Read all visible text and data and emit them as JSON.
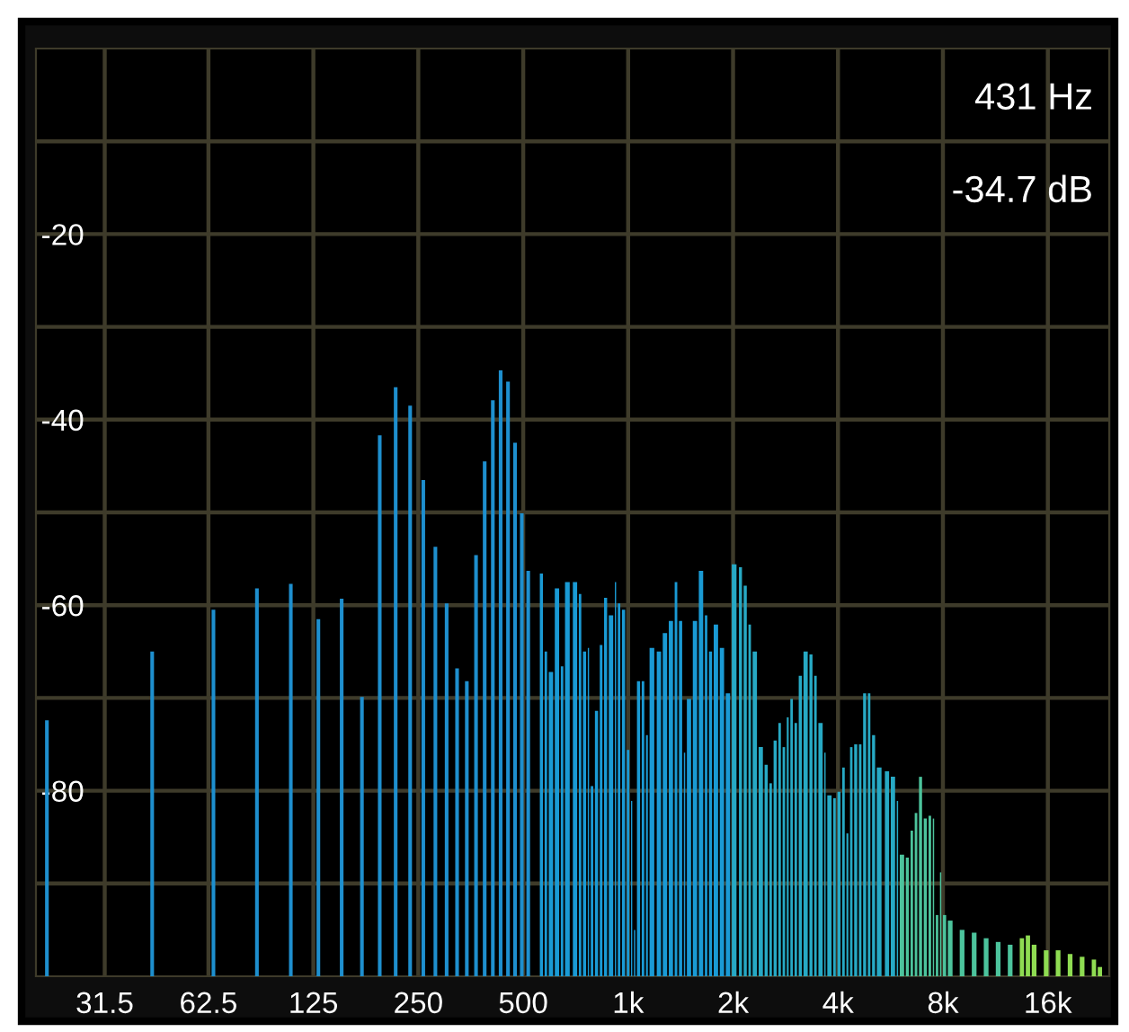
{
  "chart_data": {
    "type": "bar",
    "log": "x",
    "xlim": [
      20,
      24000
    ],
    "ylim": [
      -100,
      0
    ],
    "xticks": [
      31.5,
      62.5,
      125,
      250,
      500,
      {
        "value": 1000,
        "label": "1k"
      },
      {
        "value": 2000,
        "label": "2k"
      },
      {
        "value": 4000,
        "label": "4k"
      },
      {
        "value": 8000,
        "label": "8k"
      },
      {
        "value": 16000,
        "label": "16k"
      }
    ],
    "yticks": [
      {
        "value": -90,
        "label": null
      },
      -80,
      {
        "value": -70,
        "label": null
      },
      -60,
      {
        "value": -50,
        "label": null
      },
      -40,
      {
        "value": -30,
        "label": null
      },
      -20,
      {
        "value": -10,
        "label": null
      }
    ],
    "grid": true,
    "annotations": [
      "431 Hz",
      "-34.7 dB"
    ],
    "series": [
      {
        "color": "#1e8fce",
        "x": [
          21.5,
          43.1,
          64.6,
          86.1,
          107.7,
          129.2,
          150.7,
          172.3,
          193.8,
          215.3,
          236.9,
          258.4,
          279.9,
          301.5,
          323,
          344.5,
          366.1,
          387.6,
          409.1,
          430.7,
          452.2,
          473.7,
          495.3,
          516.8
        ],
        "base": [
          -100,
          -100,
          -100,
          -100,
          -100,
          -100,
          -100,
          -100,
          -100,
          -100,
          -100,
          -100,
          -100,
          -100,
          -100,
          -100,
          -100,
          -100,
          -100,
          -100,
          -100,
          -100,
          -100,
          -100
        ],
        "values": [
          27.6,
          35.0,
          39.5,
          41.8,
          42.3,
          38.5,
          40.7,
          30.1,
          58.3,
          63.5,
          61.5,
          53.5,
          46.3,
          40.2,
          33.2,
          31.8,
          45.4,
          55.5,
          62.1,
          65.3,
          64.1,
          57.5,
          49.9,
          43.7
        ]
      },
      {
        "color": "#1a9ad4",
        "x": [
          558,
          576,
          592,
          616,
          641,
          659,
          694,
          722,
          742,
          766,
          781,
          803,
          829,
          853,
          880,
          916,
          934,
          960,
          991,
          1019,
          1039,
          1060,
          1094,
          1125,
          1152,
          1208,
          1257,
          1308,
          1360,
          1399,
          1445,
          1474,
          1533,
          1595,
          1660,
          1706,
          1760,
          1832,
          1906
        ],
        "base": [
          -100,
          -100,
          -100,
          -100,
          -100,
          -100,
          -100,
          -100,
          -100,
          -100,
          -100,
          -100,
          -100,
          -100,
          -100,
          -100,
          -100,
          -100,
          -100,
          -100,
          -100,
          -100,
          -100,
          -100,
          -100,
          -100,
          -100,
          -100,
          -100,
          -100,
          -100,
          -100,
          -100,
          -100,
          -100,
          -100,
          -100,
          -100,
          -100
        ],
        "values": [
          43.4,
          35.0,
          32.8,
          41.8,
          33.4,
          42.5,
          42.5,
          41.2,
          35.0,
          35.4,
          20.5,
          28.6,
          35.7,
          40.8,
          38.9,
          42.5,
          40.2,
          39.5,
          24.4,
          18.9,
          5.0,
          31.8,
          31.8,
          26.0,
          35.4,
          35.0,
          37.0,
          38.3,
          42.5,
          38.3,
          24.1,
          29.9,
          38.3,
          43.7,
          38.9,
          35.0,
          37.9,
          35.4,
          30.5
        ]
      },
      {
        "color": "#27a9c4",
        "x": [
          1983,
          2079,
          2145,
          2214,
          2276,
          2368,
          2463,
          2543,
          2614,
          2698,
          2774,
          2852,
          2920,
          3002,
          3086,
          3185,
          3312,
          3418,
          3514,
          3655,
          3727,
          3877,
          3986,
          4114,
          4229,
          4331,
          4451,
          4593,
          4722,
          4872,
          5009,
          5169,
          5452,
          5669,
          5898
        ],
        "base": [
          -100,
          -100,
          -100,
          -100,
          -100,
          -100,
          -100,
          -100,
          -100,
          -100,
          -100,
          -100,
          -100,
          -100,
          -100,
          -100,
          -100,
          -100,
          -100,
          -100,
          -100,
          -100,
          -100,
          -100,
          -100,
          -100,
          -100,
          -100,
          -100,
          -100,
          -100,
          -100,
          -100,
          -100,
          -100
        ],
        "values": [
          44.4,
          44.1,
          42.1,
          37.9,
          35.0,
          24.7,
          22.8,
          20.8,
          25.4,
          27.3,
          24.7,
          27.9,
          29.9,
          27.3,
          32.4,
          35.0,
          34.7,
          32.4,
          27.3,
          24.1,
          19.5,
          19.2,
          19.9,
          22.5,
          15.4,
          24.7,
          25.0,
          25.0,
          30.5,
          30.5,
          26.0,
          22.5,
          22.1,
          21.5,
          18.9
        ]
      },
      {
        "color": "#4cc39c",
        "x": [
          6016,
          6261,
          6461,
          6640,
          6830,
          7048,
          7276,
          7483,
          7633,
          7845,
          8002,
          8264,
          8939,
          9681,
          10479,
          11344,
          12281
        ],
        "base": [
          -100,
          -100,
          -100,
          -100,
          -100,
          -100,
          -100,
          -100,
          -100,
          -100,
          -100,
          -100,
          -100,
          -100,
          -100,
          -100,
          -100
        ],
        "values": [
          13.1,
          12.8,
          15.7,
          17.6,
          21.5,
          17.0,
          17.3,
          17.0,
          6.6,
          11.2,
          6.6,
          6.0,
          5.0,
          4.7,
          4.1,
          3.7,
          3.4
        ]
      },
      {
        "color": "#8fdc52",
        "x": [
          13291,
          13827,
          14385,
          15579,
          16857,
          18247,
          19753,
          21382,
          22247
        ],
        "base": [
          -100,
          -100,
          -100,
          -100,
          -100,
          -100,
          -100,
          -100,
          -100
        ],
        "values": [
          4.1,
          4.4,
          3.4,
          2.8,
          2.8,
          2.4,
          2.1,
          1.8,
          1.0
        ]
      }
    ]
  }
}
